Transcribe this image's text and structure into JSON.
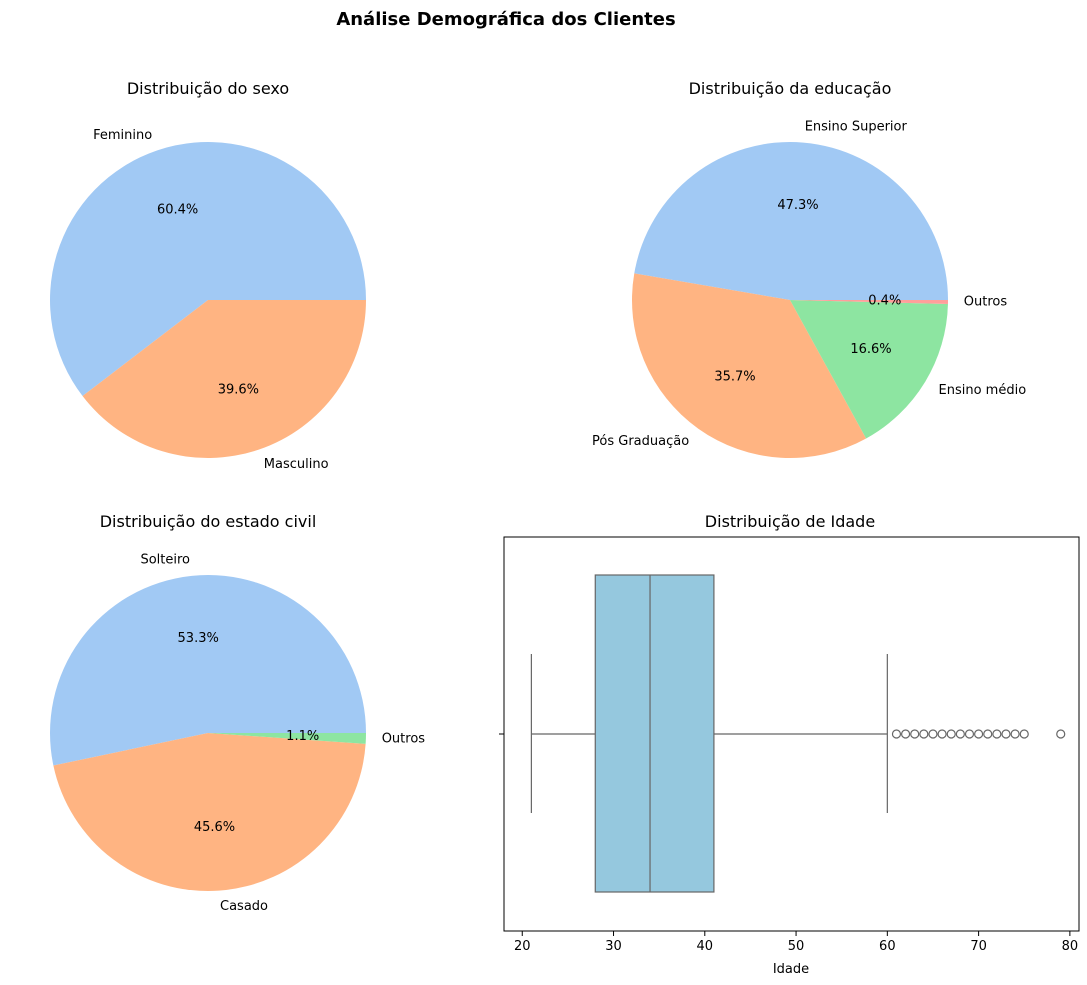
{
  "figure": {
    "title": "Análise Demográfica dos Clientes"
  },
  "chart_data": [
    {
      "type": "pie",
      "title": "Distribuição do sexo",
      "labels": [
        "Feminino",
        "Masculino"
      ],
      "values": [
        60.4,
        39.6
      ],
      "pct_labels": [
        "60.4%",
        "39.6%"
      ],
      "colors": [
        "#a1c9f4",
        "#ffb482"
      ]
    },
    {
      "type": "pie",
      "title": "Distribuição da educação",
      "labels": [
        "Ensino Superior",
        "Pós Graduação",
        "Ensino médio",
        "Outros"
      ],
      "values": [
        47.3,
        35.7,
        16.6,
        0.4
      ],
      "pct_labels": [
        "47.3%",
        "35.7%",
        "16.6%",
        "0.4%"
      ],
      "colors": [
        "#a1c9f4",
        "#ffb482",
        "#8de5a1",
        "#ff9f9b"
      ]
    },
    {
      "type": "pie",
      "title": "Distribuição do estado civil",
      "labels": [
        "Solteiro",
        "Casado",
        "Outros"
      ],
      "values": [
        53.3,
        45.6,
        1.1
      ],
      "pct_labels": [
        "53.3%",
        "45.6%",
        "1.1%"
      ],
      "colors": [
        "#a1c9f4",
        "#ffb482",
        "#8de5a1"
      ]
    },
    {
      "type": "box",
      "title": "Distribuição de Idade",
      "xlabel": "Idade",
      "xlim": [
        18,
        81
      ],
      "xticks": [
        20,
        30,
        40,
        50,
        60,
        70,
        80
      ],
      "whisker_low": 21,
      "q1": 28,
      "median": 34,
      "q3": 41,
      "whisker_high": 60,
      "outliers": [
        61,
        62,
        63,
        64,
        65,
        66,
        67,
        68,
        69,
        70,
        71,
        72,
        73,
        74,
        75,
        79
      ],
      "box_color": "#95c8de",
      "line_color": "#666666"
    }
  ]
}
